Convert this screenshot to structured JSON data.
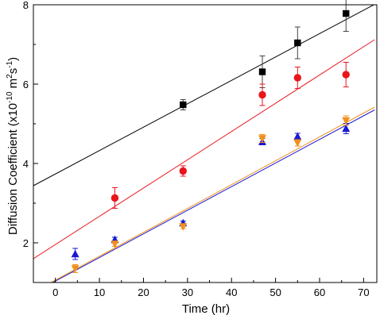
{
  "chart_data": {
    "type": "scatter",
    "xlabel": "Time (hr)",
    "ylabel_parts": [
      "Diffusion Coefficient (x10",
      "-10",
      " m",
      "2",
      "s",
      "-1",
      ")"
    ],
    "xlim": [
      -5,
      73
    ],
    "ylim": [
      1,
      8
    ],
    "xticks": [
      0,
      10,
      20,
      30,
      40,
      50,
      60,
      70
    ],
    "yticks": [
      2,
      4,
      6,
      8
    ],
    "grid": false,
    "series": [
      {
        "marker": "square",
        "color": "#000000",
        "points": [
          {
            "x": 29,
            "y": 5.48,
            "err": 0.13
          },
          {
            "x": 47,
            "y": 6.31,
            "err": 0.4
          },
          {
            "x": 55,
            "y": 7.04,
            "err": 0.4
          },
          {
            "x": 66,
            "y": 7.78,
            "err": 0.45
          }
        ],
        "fit": {
          "color": "#000000",
          "x": [
            -5,
            73
          ],
          "y": [
            3.44,
            8.04
          ]
        }
      },
      {
        "marker": "circle",
        "color": "#e8161b",
        "points": [
          {
            "x": 13.5,
            "y": 3.13,
            "err": 0.26
          },
          {
            "x": 29,
            "y": 3.81,
            "err": 0.13
          },
          {
            "x": 47,
            "y": 5.73,
            "err": 0.27
          },
          {
            "x": 55,
            "y": 6.16,
            "err": 0.27
          },
          {
            "x": 66,
            "y": 6.24,
            "err": 0.31
          }
        ],
        "fit": {
          "color": "#e8161b",
          "x": [
            -5,
            72.5
          ],
          "y": [
            1.6,
            7.12
          ]
        }
      },
      {
        "marker": "triangle-up",
        "color": "#1a1ad0",
        "points": [
          {
            "x": 4.5,
            "y": 1.72,
            "err": 0.14
          },
          {
            "x": 13.5,
            "y": 2.08,
            "err": 0.06
          },
          {
            "x": 29,
            "y": 2.5,
            "err": 0.05
          },
          {
            "x": 47,
            "y": 4.55,
            "err": 0.08
          },
          {
            "x": 55,
            "y": 4.68,
            "err": 0.08
          },
          {
            "x": 66,
            "y": 4.88,
            "err": 0.13
          }
        ],
        "fit": {
          "color": "#1a1ad0",
          "x": [
            -0.6,
            72.5
          ],
          "y": [
            1.0,
            5.35
          ]
        }
      },
      {
        "marker": "triangle-down",
        "color": "#f0901e",
        "points": [
          {
            "x": 4.5,
            "y": 1.35,
            "err": 0.1
          },
          {
            "x": 13.5,
            "y": 1.97,
            "err": 0.06
          },
          {
            "x": 29,
            "y": 2.41,
            "err": 0.05
          },
          {
            "x": 47,
            "y": 4.63,
            "err": 0.1
          },
          {
            "x": 55,
            "y": 4.52,
            "err": 0.08
          },
          {
            "x": 66,
            "y": 5.08,
            "err": 0.12
          }
        ],
        "fit": {
          "color": "#f0901e",
          "x": [
            -1.0,
            72.5
          ],
          "y": [
            1.0,
            5.42
          ]
        }
      }
    ]
  }
}
